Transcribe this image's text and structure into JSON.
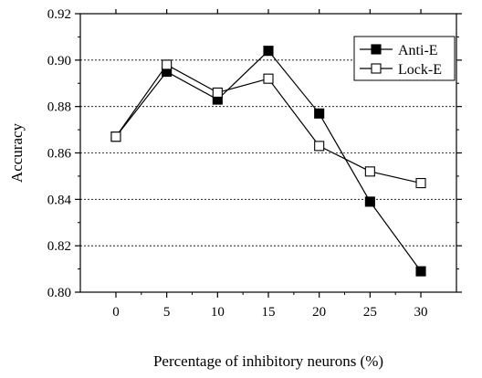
{
  "chart_data": {
    "type": "line",
    "title": "",
    "xlabel": "Percentage of inhibitory neurons (%)",
    "ylabel": "Accuracy",
    "x": [
      0,
      5,
      10,
      15,
      20,
      25,
      30
    ],
    "xlim": [
      -3.5,
      33.5
    ],
    "ylim": [
      0.8,
      0.92
    ],
    "x_ticks": [
      "0",
      "5",
      "10",
      "15",
      "20",
      "25",
      "30"
    ],
    "y_ticks": [
      "0.80",
      "0.82",
      "0.84",
      "0.86",
      "0.88",
      "0.90",
      "0.92"
    ],
    "grid": "horizontal dashed",
    "legend_position": "top-right",
    "series": [
      {
        "name": "Anti-E",
        "marker": "filled-square",
        "color": "#000000",
        "values": [
          0.867,
          0.895,
          0.883,
          0.904,
          0.877,
          0.839,
          0.809
        ]
      },
      {
        "name": "Lock-E",
        "marker": "open-square",
        "color": "#000000",
        "values": [
          0.867,
          0.898,
          0.886,
          0.892,
          0.863,
          0.852,
          0.847
        ]
      }
    ]
  }
}
